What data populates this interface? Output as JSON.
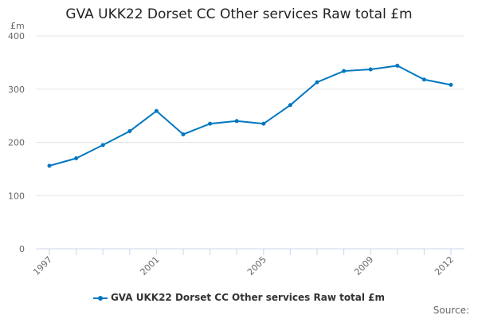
{
  "chart_data": {
    "type": "line",
    "title": "GVA UKK22 Dorset CC Other services Raw total £m",
    "ylabel": "£m",
    "xlabel": "",
    "ylim": [
      0,
      400
    ],
    "yticks": [
      0,
      100,
      200,
      300,
      400
    ],
    "x": [
      1997,
      1998,
      1999,
      2000,
      2001,
      2002,
      2003,
      2004,
      2005,
      2006,
      2007,
      2008,
      2009,
      2010,
      2011,
      2012
    ],
    "xtick_labels": [
      "1997",
      "2001",
      "2005",
      "2009",
      "2012"
    ],
    "series": [
      {
        "name": "GVA UKK22 Dorset CC Other services Raw total £m",
        "color": "#0077c0",
        "values": [
          156,
          170,
          195,
          221,
          259,
          215,
          235,
          240,
          235,
          270,
          313,
          334,
          337,
          344,
          318,
          308
        ]
      }
    ],
    "legend": "bottom",
    "grid": true
  },
  "source_label": "Source:"
}
